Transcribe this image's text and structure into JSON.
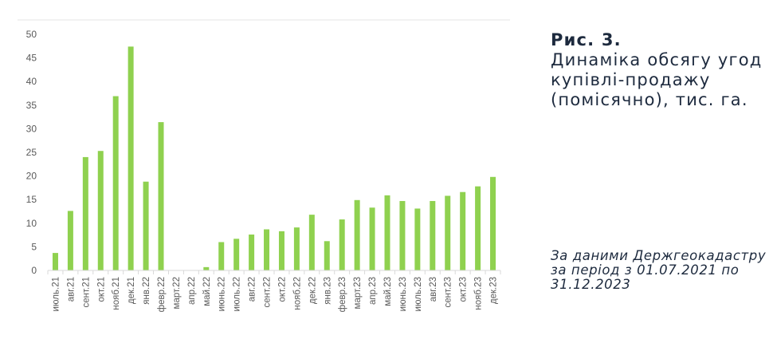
{
  "caption": {
    "figure_label": "Рис. 3.",
    "text": "Динаміка обсягу угод купівлі-продажу (помісячно), тис. га."
  },
  "source_note": "За даними Держгеокадастру за період з 01.07.2021 по 31.12.2023",
  "colors": {
    "bar": "#8fd14f",
    "axis": "#d9d9d9",
    "text": "#595959"
  },
  "chart_data": {
    "type": "bar",
    "title": "",
    "xlabel": "",
    "ylabel": "",
    "ylim": [
      0,
      50
    ],
    "yticks": [
      0,
      5,
      10,
      15,
      20,
      25,
      30,
      35,
      40,
      45,
      50
    ],
    "grid": false,
    "legend": "none",
    "categories": [
      "июль.21",
      "авг.21",
      "сент.21",
      "окт.21",
      "нояб.21",
      "дек.21",
      "янв.22",
      "февр.22",
      "март.22",
      "апр.22",
      "май.22",
      "июнь.22",
      "июль.22",
      "авг.22",
      "сент.22",
      "окт.22",
      "нояб.22",
      "дек.22",
      "янв.23",
      "февр.23",
      "март.23",
      "апр.23",
      "май.23",
      "июнь.23",
      "июль.23",
      "авг.23",
      "сент.23",
      "окт.23",
      "нояб.23",
      "дек.23"
    ],
    "series": [
      {
        "values": [
          3.7,
          12.6,
          24.0,
          25.3,
          36.9,
          47.4,
          18.8,
          31.4,
          0,
          0,
          0.7,
          6.0,
          6.7,
          7.6,
          8.7,
          8.3,
          9.1,
          11.8,
          6.2,
          10.8,
          14.9,
          13.3,
          15.9,
          14.7,
          13.1,
          14.7,
          15.8,
          16.6,
          17.8,
          19.8
        ]
      }
    ]
  }
}
